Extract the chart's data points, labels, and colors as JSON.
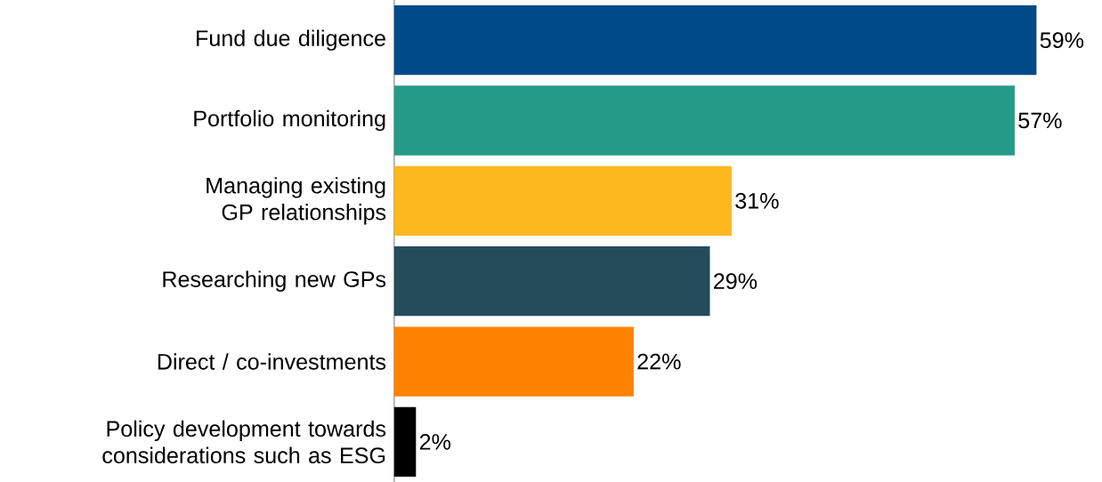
{
  "chart_data": {
    "type": "bar",
    "orientation": "horizontal",
    "categories": [
      "Fund due diligence",
      "Portfolio monitoring",
      "Managing existing GP relationships",
      "Researching new GPs",
      "Direct / co-investments",
      "Policy development towards considerations such as ESG"
    ],
    "values": [
      59,
      57,
      31,
      29,
      22,
      2
    ],
    "colors": [
      "#004a87",
      "#259a87",
      "#fdb81e",
      "#244c5a",
      "#ff8200",
      "#000000"
    ],
    "value_labels": [
      "59%",
      "57%",
      "31%",
      "29%",
      "22%",
      "2%"
    ]
  }
}
